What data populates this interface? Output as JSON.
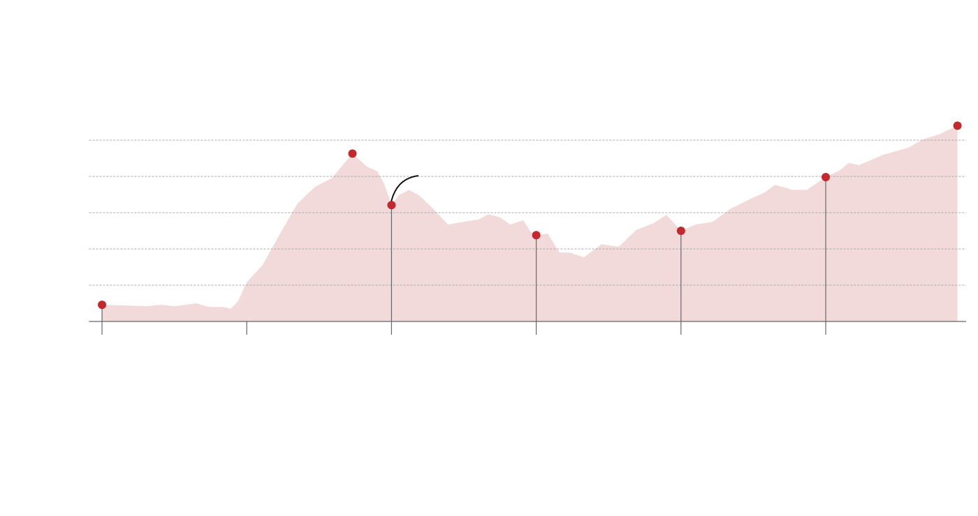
{
  "chart_data": {
    "type": "area",
    "x": [
      0,
      0.16,
      0.31,
      0.41,
      0.5,
      0.65,
      0.74,
      0.84,
      0.89,
      0.94,
      1.0,
      1.11,
      1.23,
      1.35,
      1.47,
      1.59,
      1.73,
      1.83,
      1.9,
      1.95,
      2.0,
      2.05,
      2.12,
      2.19,
      2.29,
      2.39,
      2.5,
      2.6,
      2.67,
      2.75,
      2.82,
      2.91,
      2.96,
      3.0,
      3.08,
      3.16,
      3.23,
      3.33,
      3.45,
      3.57,
      3.69,
      3.81,
      3.9,
      4.0,
      4.1,
      4.22,
      4.34,
      4.48,
      4.58,
      4.65,
      4.77,
      4.87,
      5.0,
      5.09,
      5.16,
      5.23,
      5.4,
      5.57,
      5.67,
      5.79,
      5.91
    ],
    "values": [
      0.46,
      0.44,
      0.42,
      0.46,
      0.42,
      0.5,
      0.4,
      0.4,
      0.35,
      0.56,
      1.08,
      1.56,
      2.42,
      3.25,
      3.71,
      3.96,
      4.63,
      4.27,
      4.15,
      3.79,
      3.21,
      3.48,
      3.63,
      3.48,
      3.1,
      2.67,
      2.75,
      2.81,
      2.96,
      2.87,
      2.67,
      2.79,
      2.48,
      2.38,
      2.42,
      1.9,
      1.9,
      1.77,
      2.13,
      2.06,
      2.52,
      2.71,
      2.94,
      2.5,
      2.67,
      2.75,
      3.1,
      3.38,
      3.56,
      3.77,
      3.63,
      3.63,
      3.98,
      4.15,
      4.37,
      4.31,
      4.6,
      4.79,
      5.02,
      5.17,
      5.4
    ],
    "color": "#f2d9da",
    "points": {
      "x": [
        0,
        1.73,
        2,
        3,
        4,
        5,
        5.91
      ],
      "values": [
        0.46,
        4.63,
        3.21,
        2.38,
        2.5,
        3.98,
        5.4
      ],
      "color": "#c4282f"
    },
    "xlim": [
      -0.09,
      5.97
    ],
    "ylim": [
      0,
      6
    ],
    "xticks": [
      0,
      1,
      2,
      3,
      4,
      5
    ],
    "yticks": [
      0,
      1,
      2,
      3,
      4,
      5
    ],
    "grid": true
  }
}
